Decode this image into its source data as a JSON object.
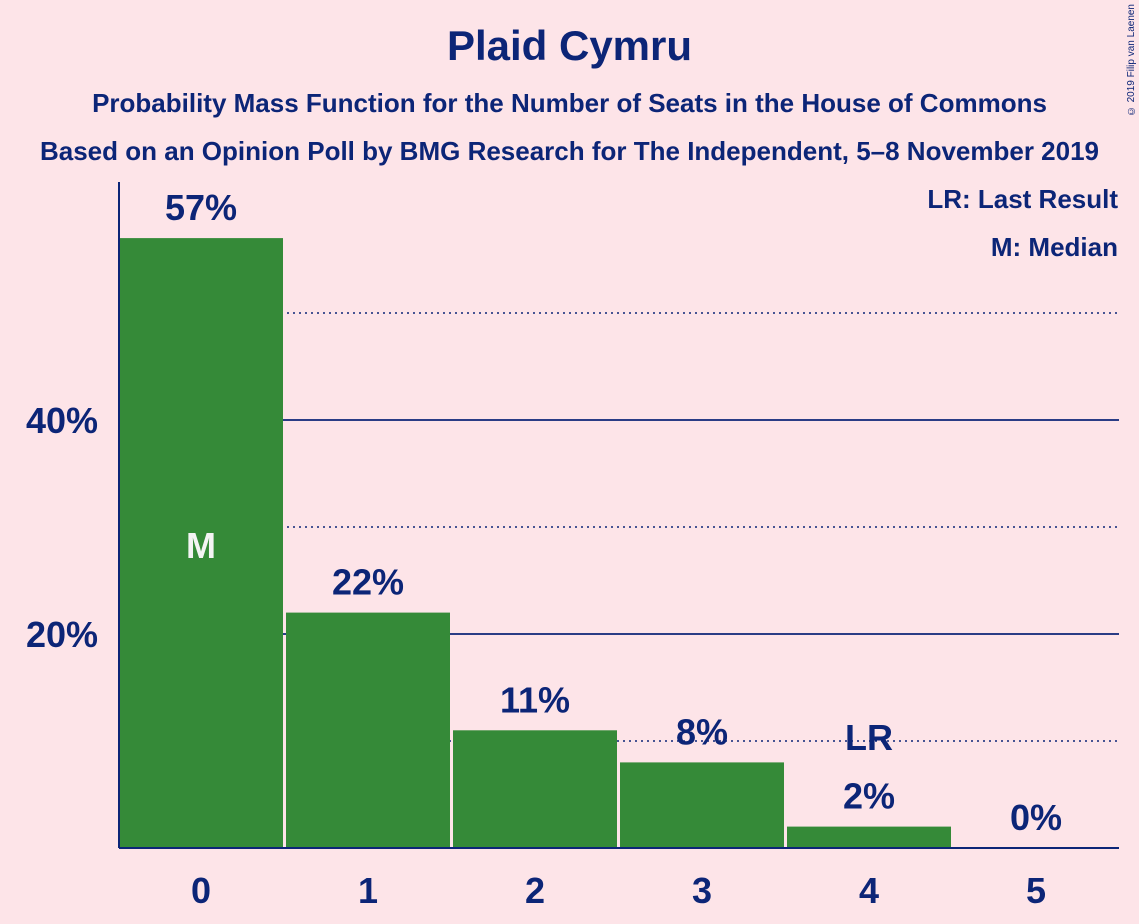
{
  "title": "Plaid Cymru",
  "subtitle1": "Probability Mass Function for the Number of Seats in the House of Commons",
  "subtitle2": "Based on an Opinion Poll by BMG Research for The Independent, 5–8 November 2019",
  "copyright": "© 2019 Filip van Laenen",
  "legend": {
    "last_result": "LR: Last Result",
    "median": "M: Median"
  },
  "colors": {
    "background": "#fde4e8",
    "bar": "#358a38",
    "text": "#0c2577"
  },
  "chart_data": {
    "type": "bar",
    "categories": [
      "0",
      "1",
      "2",
      "3",
      "4",
      "5"
    ],
    "values": [
      57,
      22,
      11,
      8,
      2,
      0
    ],
    "value_labels": [
      "57%",
      "22%",
      "11%",
      "8%",
      "2%",
      "0%"
    ],
    "ylim": [
      0,
      62
    ],
    "yticks": [
      20,
      40
    ],
    "ytick_labels": [
      "20%",
      "40%"
    ],
    "grid_solid": [
      20,
      40
    ],
    "grid_dotted": [
      10,
      30,
      50
    ],
    "median_index": 0,
    "median_label": "M",
    "last_result_index": 4,
    "last_result_label": "LR"
  }
}
